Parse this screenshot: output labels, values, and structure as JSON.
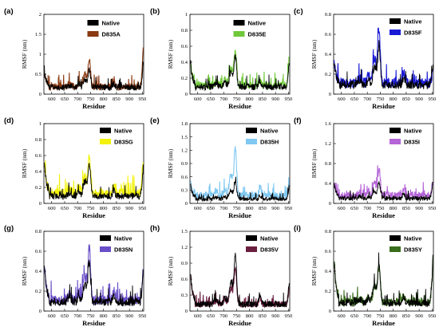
{
  "figure": {
    "xlabel": "Residue",
    "ylabel": "RMSF (nm)"
  },
  "chart_data": [
    {
      "type": "line",
      "panel_label": "(a)",
      "xlabel": "Residue",
      "ylabel": "RMSF (nm)",
      "xlim": [
        570,
        955
      ],
      "ylim": [
        0,
        2
      ],
      "xticks": [
        600,
        650,
        700,
        750,
        800,
        850,
        900,
        950
      ],
      "yticks": [
        0,
        0.5,
        1,
        1.5,
        2
      ],
      "ytick_labels": [
        "0",
        "0.5",
        "1",
        "1.5",
        "2"
      ],
      "legend_position": "top-center",
      "series": [
        {
          "name": "Native",
          "color": "#000000"
        },
        {
          "name": "D835A",
          "color": "#8b3a12"
        }
      ],
      "profile": {
        "base": 0.17,
        "start": 0.55,
        "peak": 0.6,
        "end": 0.7,
        "mut_peak": 0.88,
        "mut_end": 1.25,
        "mut_base": 0.18
      }
    },
    {
      "type": "line",
      "panel_label": "(b)",
      "xlabel": "Residue",
      "ylabel": "RMSF (nm)",
      "xlim": [
        570,
        955
      ],
      "ylim": [
        0,
        1
      ],
      "xticks": [
        600,
        650,
        700,
        750,
        800,
        850,
        900,
        950
      ],
      "yticks": [
        0,
        0.2,
        0.4,
        0.6,
        0.8,
        1
      ],
      "ytick_labels": [
        "0",
        "0.2",
        "0.4",
        "0.6",
        "0.8",
        "1"
      ],
      "legend_position": "top-center",
      "series": [
        {
          "name": "Native",
          "color": "#000000"
        },
        {
          "name": "D835E",
          "color": "#6fc83a"
        }
      ],
      "profile": {
        "base": 0.09,
        "start": 0.38,
        "peak": 0.48,
        "end": 0.42,
        "mut_peak": 0.56,
        "mut_end": 0.48,
        "mut_base": 0.11
      }
    },
    {
      "type": "line",
      "panel_label": "(c)",
      "xlabel": "Residue",
      "ylabel": "RMSF (nm)",
      "xlim": [
        570,
        955
      ],
      "ylim": [
        0,
        0.8
      ],
      "xticks": [
        600,
        650,
        700,
        750,
        800,
        850,
        900,
        950
      ],
      "yticks": [
        0,
        0.2,
        0.4,
        0.6,
        0.8
      ],
      "ytick_labels": [
        "0",
        "0.2",
        "0.4",
        "0.6",
        "0.8"
      ],
      "legend_position": "top-right",
      "series": [
        {
          "name": "Native",
          "color": "#000000"
        },
        {
          "name": "D835F",
          "color": "#1a1ad6"
        }
      ],
      "profile": {
        "base": 0.09,
        "start": 0.32,
        "peak": 0.48,
        "end": 0.3,
        "mut_peak": 0.65,
        "mut_end": 0.27,
        "mut_base": 0.11
      }
    },
    {
      "type": "line",
      "panel_label": "(d)",
      "xlabel": "Residue",
      "ylabel": "RMSF (nm)",
      "xlim": [
        570,
        955
      ],
      "ylim": [
        0,
        1
      ],
      "xticks": [
        600,
        650,
        700,
        750,
        800,
        850,
        900,
        950
      ],
      "yticks": [
        0,
        0.2,
        0.4,
        0.6,
        0.8,
        1
      ],
      "ytick_labels": [
        "0",
        "0.2",
        "0.4",
        "0.6",
        "0.8",
        "1"
      ],
      "legend_position": "top-right",
      "series": [
        {
          "name": "Native",
          "color": "#000000"
        },
        {
          "name": "D835G",
          "color": "#f2f20a"
        }
      ],
      "profile": {
        "base": 0.09,
        "start": 0.5,
        "peak": 0.5,
        "end": 0.45,
        "mut_peak": 0.58,
        "mut_end": 0.55,
        "mut_base": 0.13
      }
    },
    {
      "type": "line",
      "panel_label": "(e)",
      "xlabel": "Residue",
      "ylabel": "RMSF (nm)",
      "xlim": [
        570,
        955
      ],
      "ylim": [
        0,
        1.8
      ],
      "xticks": [
        600,
        650,
        700,
        750,
        800,
        850,
        900,
        950
      ],
      "yticks": [
        0,
        0.3,
        0.6,
        0.9,
        1.2,
        1.5,
        1.8
      ],
      "ytick_labels": [
        "0",
        "0.3",
        "0.6",
        "0.9",
        "1.2",
        "1.5",
        "1.8"
      ],
      "legend_position": "top-right",
      "series": [
        {
          "name": "Native",
          "color": "#000000"
        },
        {
          "name": "D835H",
          "color": "#7fc8f2"
        }
      ],
      "profile": {
        "base": 0.1,
        "start": 0.42,
        "peak": 0.5,
        "end": 0.4,
        "mut_peak": 1.22,
        "mut_end": 0.45,
        "mut_base": 0.18
      }
    },
    {
      "type": "line",
      "panel_label": "(f)",
      "xlabel": "Residue",
      "ylabel": "RMSF (nm)",
      "xlim": [
        570,
        955
      ],
      "ylim": [
        0,
        1.6
      ],
      "xticks": [
        600,
        650,
        700,
        750,
        800,
        850,
        900,
        950
      ],
      "yticks": [
        0,
        0.4,
        0.8,
        1.2,
        1.6
      ],
      "ytick_labels": [
        "0",
        "0.4",
        "0.8",
        "1.2",
        "1.6"
      ],
      "legend_position": "top-right",
      "series": [
        {
          "name": "Native",
          "color": "#000000"
        },
        {
          "name": "D835I",
          "color": "#b565d8"
        }
      ],
      "profile": {
        "base": 0.1,
        "start": 0.4,
        "peak": 0.42,
        "end": 0.45,
        "mut_peak": 0.68,
        "mut_end": 0.48,
        "mut_base": 0.16
      }
    },
    {
      "type": "line",
      "panel_label": "(g)",
      "xlabel": "Residue",
      "ylabel": "RMSF (nm)",
      "xlim": [
        570,
        955
      ],
      "ylim": [
        0,
        0.8
      ],
      "xticks": [
        600,
        650,
        700,
        750,
        800,
        850,
        900,
        950
      ],
      "yticks": [
        0,
        0.2,
        0.4,
        0.6,
        0.8
      ],
      "ytick_labels": [
        "0",
        "0.2",
        "0.4",
        "0.6",
        "0.8"
      ],
      "legend_position": "top-right",
      "series": [
        {
          "name": "Native",
          "color": "#000000"
        },
        {
          "name": "D835N",
          "color": "#6a4fc8"
        }
      ],
      "profile": {
        "base": 0.09,
        "start": 0.45,
        "peak": 0.48,
        "end": 0.42,
        "mut_peak": 0.63,
        "mut_end": 0.4,
        "mut_base": 0.11
      }
    },
    {
      "type": "line",
      "panel_label": "(h)",
      "xlabel": "Residue",
      "ylabel": "RMSF (nm)",
      "xlim": [
        570,
        955
      ],
      "ylim": [
        0,
        1.5
      ],
      "xticks": [
        600,
        650,
        700,
        750,
        800,
        850,
        900,
        950
      ],
      "yticks": [
        0,
        0.3,
        0.6,
        0.9,
        1.2,
        1.5
      ],
      "ytick_labels": [
        "0",
        "0.3",
        "0.6",
        "0.9",
        "1.2",
        "1.5"
      ],
      "legend_position": "top-right",
      "series": [
        {
          "name": "Native",
          "color": "#000000"
        },
        {
          "name": "D835V",
          "color": "#6b1f40"
        }
      ],
      "profile": {
        "base": 0.13,
        "start": 0.7,
        "peak": 1.05,
        "end": 0.5,
        "mut_peak": 0.8,
        "mut_end": 0.45,
        "mut_base": 0.13
      }
    },
    {
      "type": "line",
      "panel_label": "(i)",
      "xlabel": "Residue",
      "ylabel": "RMSF (nm)",
      "xlim": [
        570,
        955
      ],
      "ylim": [
        0,
        0.8
      ],
      "xticks": [
        600,
        650,
        700,
        750,
        800,
        850,
        900,
        950
      ],
      "yticks": [
        0,
        0.2,
        0.4,
        0.6,
        0.8
      ],
      "ytick_labels": [
        "0",
        "0.2",
        "0.4",
        "0.6",
        "0.8"
      ],
      "legend_position": "top-right",
      "series": [
        {
          "name": "Native",
          "color": "#000000"
        },
        {
          "name": "D835Y",
          "color": "#3a6e1c"
        }
      ],
      "profile": {
        "base": 0.08,
        "start": 0.5,
        "peak": 0.48,
        "end": 0.55,
        "mut_peak": 0.45,
        "mut_end": 0.5,
        "mut_base": 0.09
      }
    }
  ]
}
